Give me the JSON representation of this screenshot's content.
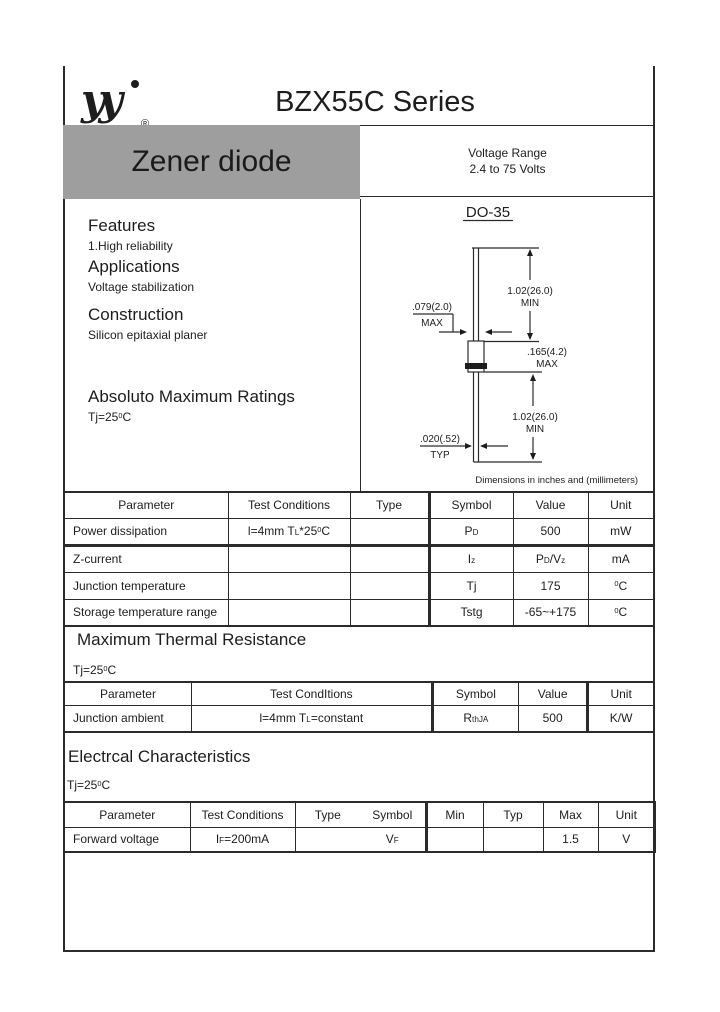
{
  "page": {
    "title": "BZX55C Series"
  },
  "logo": {
    "mark": "yy",
    "reg": "®"
  },
  "banner": {
    "product": "Zener diode",
    "voltage_line1": "Voltage Range",
    "voltage_line2": "2.4 to 75 Volts"
  },
  "left": {
    "features_title": "Features",
    "features_item": "1.High reliability",
    "applications_title": "Applications",
    "applications_item": "Voltage stabilization",
    "construction_title": "Construction",
    "construction_item": "Silicon epitaxial planer",
    "absmax_title": "Absoluto Maximum Ratings",
    "absmax_cond": [
      {
        "t": "Tj=25"
      },
      {
        "t": "0",
        "s": "sup"
      },
      {
        "t": "C"
      }
    ]
  },
  "package": {
    "name": "DO-35",
    "lead_top_dim": "1.02(26.0)",
    "lead_top_qual": "MIN",
    "body_dia_dim": ".079(2.0)",
    "body_dia_qual": "MAX",
    "body_len_dim": ".165(4.2)",
    "body_len_qual": "MAX",
    "lead_bot_dim": "1.02(26.0)",
    "lead_bot_qual": "MIN",
    "lead_dia_dim": ".020(.52)",
    "lead_dia_qual": "TYP",
    "footnote": "Dimensions in inches and (millimeters)"
  },
  "abs_table": {
    "headers": [
      "Parameter",
      "Test Conditions",
      "Type",
      "Symbol",
      "Value",
      "Unit"
    ],
    "rows": [
      {
        "param": "Power dissipation",
        "test": [
          {
            "t": "l=4mm T"
          },
          {
            "t": "L",
            "s": "sub"
          },
          {
            "t": "*25"
          },
          {
            "t": "0",
            "s": "sup"
          },
          {
            "t": "C"
          }
        ],
        "type": "",
        "symbol": [
          {
            "t": "P"
          },
          {
            "t": "D",
            "s": "sub"
          }
        ],
        "value": "500",
        "unit": "mW"
      },
      {
        "param": "Z-current",
        "test": "",
        "type": "",
        "symbol": [
          {
            "t": "I"
          },
          {
            "t": "z",
            "s": "sub"
          }
        ],
        "value": [
          {
            "t": "P"
          },
          {
            "t": "D",
            "s": "sub"
          },
          {
            "t": "/V"
          },
          {
            "t": "z",
            "s": "sub"
          }
        ],
        "unit": "mA"
      },
      {
        "param": "Junction temperature",
        "test": "",
        "type": "",
        "symbol": "Tj",
        "value": "175",
        "unit": [
          {
            "t": "0",
            "s": "sup"
          },
          {
            "t": "C"
          }
        ]
      },
      {
        "param": "Storage temperature range",
        "test": "",
        "type": "",
        "symbol": "Tstg",
        "value": "-65~+175",
        "unit": [
          {
            "t": "0",
            "s": "sup"
          },
          {
            "t": "C"
          }
        ]
      }
    ]
  },
  "thermal": {
    "title": "Maximum Thermal Resistance",
    "cond": [
      {
        "t": "Tj=25"
      },
      {
        "t": "0",
        "s": "sup"
      },
      {
        "t": "C"
      }
    ],
    "headers": [
      "Parameter",
      "Test CondItions",
      "Symbol",
      "Value",
      "Unit"
    ],
    "row": {
      "param": "Junction ambient",
      "test": [
        {
          "t": "l=4mm T"
        },
        {
          "t": "L",
          "s": "sub"
        },
        {
          "t": "=constant"
        }
      ],
      "symbol": [
        {
          "t": "R"
        },
        {
          "t": "thJA",
          "s": "sub"
        }
      ],
      "value": "500",
      "unit": "K/W"
    }
  },
  "electrical": {
    "title": "Electrcal Characteristics",
    "cond": [
      {
        "t": "Tj=25"
      },
      {
        "t": "0",
        "s": "sup"
      },
      {
        "t": "C"
      }
    ],
    "headers": {
      "param": "Parameter",
      "test": "Test Conditions",
      "type": "Type",
      "symbol": "Symbol",
      "min": "Min",
      "typ": "Typ",
      "max": "Max",
      "unit": "Unit"
    },
    "row": {
      "param": "Forward voltage",
      "test": [
        {
          "t": "I"
        },
        {
          "t": "F",
          "s": "sub"
        },
        {
          "t": "=200mA"
        }
      ],
      "type": "",
      "symbol": [
        {
          "t": "V"
        },
        {
          "t": "F",
          "s": "sub"
        }
      ],
      "min": "",
      "typ": "",
      "max": "1.5",
      "unit": "V"
    }
  }
}
